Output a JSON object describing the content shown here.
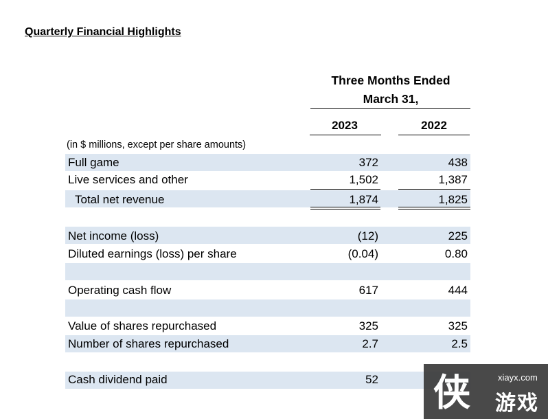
{
  "title": "Quarterly Financial Highlights",
  "header": {
    "line1": "Three Months Ended",
    "line2": "March 31,",
    "col1": "2023",
    "col2": "2022"
  },
  "units_note": "(in $ millions, except per share amounts)",
  "rows": [
    {
      "label": "Full game",
      "v2023": "372",
      "v2022": "438"
    },
    {
      "label": "Live services and other",
      "v2023": "1,502",
      "v2022": "1,387"
    },
    {
      "label": "Total net revenue",
      "v2023": "1,874",
      "v2022": "1,825"
    },
    {
      "label": "Net income (loss)",
      "v2023": "(12)",
      "v2022": "225"
    },
    {
      "label": "Diluted earnings (loss) per share",
      "v2023": "(0.04)",
      "v2022": "0.80"
    },
    {
      "label": "Operating cash flow",
      "v2023": "617",
      "v2022": "444"
    },
    {
      "label": "Value of shares repurchased",
      "v2023": "325",
      "v2022": "325"
    },
    {
      "label": "Number of shares repurchased",
      "v2023": "2.7",
      "v2022": "2.5"
    },
    {
      "label": "Cash dividend paid",
      "v2023": "52",
      "v2022": ""
    }
  ],
  "colors": {
    "band": "#dce6f1"
  },
  "watermark": {
    "url": "xiayx.com",
    "text": "游戏",
    "glyph": "侠"
  }
}
